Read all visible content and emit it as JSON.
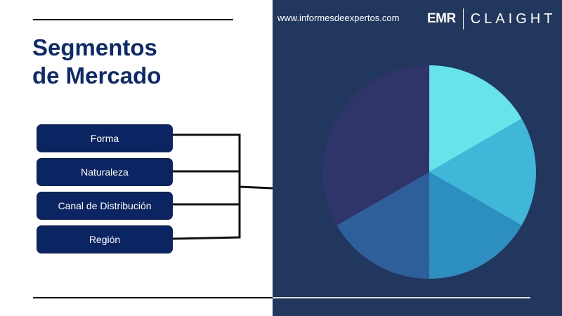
{
  "header": {
    "url": "www.informesdeexpertos.com",
    "logo_left": "EMR",
    "logo_right": "CLAIGHT"
  },
  "title": {
    "line1": "Segmentos",
    "line2": "de Mercado"
  },
  "segments": [
    {
      "label": "Forma"
    },
    {
      "label": "Naturaleza"
    },
    {
      "label": "Canal de Distribución"
    },
    {
      "label": "Región"
    }
  ],
  "colors": {
    "background_right": "#22375e",
    "button": "#0b2462",
    "title": "#0d2a6b"
  },
  "pie": {
    "slices": [
      {
        "fraction": 0.1667,
        "color": "#67e3ea"
      },
      {
        "fraction": 0.1667,
        "color": "#40b6d9"
      },
      {
        "fraction": 0.1667,
        "color": "#2d8ec0"
      },
      {
        "fraction": 0.1667,
        "color": "#2e5f9b"
      },
      {
        "fraction": 0.3333,
        "color": "#2f3469"
      }
    ]
  }
}
